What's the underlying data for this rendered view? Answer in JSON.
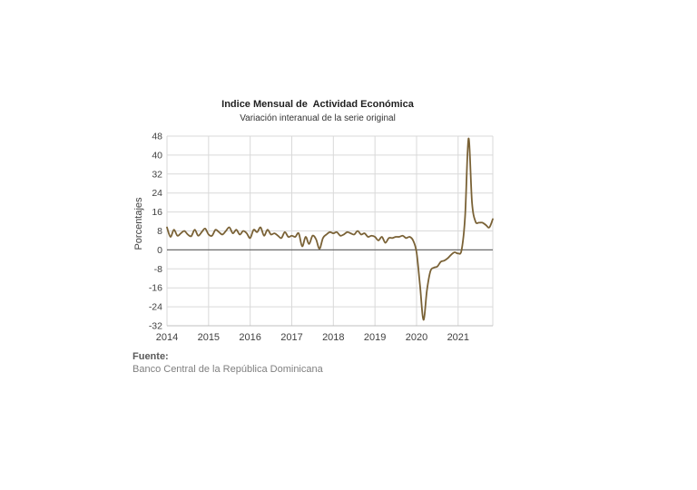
{
  "chart_data": {
    "type": "line",
    "title": "Indice Mensual de  Actividad Económica",
    "subtitle": "Variación interanual de la serie original",
    "xlabel": "",
    "ylabel": "Porcentajes",
    "x_tick_labels": [
      "2014",
      "2015",
      "2016",
      "2017",
      "2018",
      "2019",
      "2020",
      "2021"
    ],
    "y_ticks": [
      48,
      40,
      32,
      24,
      16,
      8,
      0,
      -8,
      -16,
      -24,
      -32
    ],
    "ylim": [
      -32,
      48
    ],
    "xlim": [
      "2014-01",
      "2021-11"
    ],
    "grid": true,
    "legend": "none",
    "line_color": "#7a6236",
    "series": [
      {
        "name": "",
        "x": [
          "2014-01",
          "2014-02",
          "2014-03",
          "2014-04",
          "2014-05",
          "2014-06",
          "2014-07",
          "2014-08",
          "2014-09",
          "2014-10",
          "2014-11",
          "2014-12",
          "2015-01",
          "2015-02",
          "2015-03",
          "2015-04",
          "2015-05",
          "2015-06",
          "2015-07",
          "2015-08",
          "2015-09",
          "2015-10",
          "2015-11",
          "2015-12",
          "2016-01",
          "2016-02",
          "2016-03",
          "2016-04",
          "2016-05",
          "2016-06",
          "2016-07",
          "2016-08",
          "2016-09",
          "2016-10",
          "2016-11",
          "2016-12",
          "2017-01",
          "2017-02",
          "2017-03",
          "2017-04",
          "2017-05",
          "2017-06",
          "2017-07",
          "2017-08",
          "2017-09",
          "2017-10",
          "2017-11",
          "2017-12",
          "2018-01",
          "2018-02",
          "2018-03",
          "2018-04",
          "2018-05",
          "2018-06",
          "2018-07",
          "2018-08",
          "2018-09",
          "2018-10",
          "2018-11",
          "2018-12",
          "2019-01",
          "2019-02",
          "2019-03",
          "2019-04",
          "2019-05",
          "2019-06",
          "2019-07",
          "2019-08",
          "2019-09",
          "2019-10",
          "2019-11",
          "2019-12",
          "2020-01",
          "2020-02",
          "2020-03",
          "2020-04",
          "2020-05",
          "2020-06",
          "2020-07",
          "2020-08",
          "2020-09",
          "2020-10",
          "2020-11",
          "2020-12",
          "2021-01",
          "2021-02",
          "2021-03",
          "2021-04",
          "2021-05",
          "2021-06",
          "2021-07",
          "2021-08",
          "2021-09",
          "2021-10",
          "2021-11"
        ],
        "values": [
          9.5,
          5.5,
          8.5,
          6.0,
          7.0,
          8.0,
          6.5,
          5.8,
          8.5,
          6.0,
          7.5,
          9.0,
          6.5,
          6.0,
          8.5,
          7.5,
          6.5,
          8.0,
          9.5,
          7.0,
          8.5,
          6.5,
          8.0,
          7.0,
          5.0,
          8.5,
          7.5,
          9.5,
          6.0,
          8.5,
          6.5,
          7.0,
          6.0,
          5.0,
          7.5,
          5.5,
          6.0,
          5.5,
          7.0,
          1.5,
          5.5,
          2.5,
          6.0,
          4.5,
          0.5,
          5.0,
          6.5,
          7.5,
          7.0,
          7.5,
          6.0,
          6.5,
          7.5,
          7.0,
          6.5,
          8.0,
          6.5,
          7.0,
          5.5,
          6.0,
          5.5,
          4.0,
          5.5,
          3.0,
          5.0,
          5.0,
          5.5,
          5.5,
          6.0,
          5.0,
          5.5,
          4.0,
          -1.0,
          -15.0,
          -29.5,
          -17.0,
          -9.0,
          -7.5,
          -7.0,
          -5.0,
          -4.5,
          -3.5,
          -2.0,
          -1.0,
          -1.5,
          0.0,
          14.0,
          47.0,
          20.0,
          12.0,
          11.5,
          11.5,
          10.5,
          9.5,
          13.0
        ]
      }
    ]
  },
  "source": {
    "label": "Fuente:",
    "text": "Banco Central de la República Dominicana"
  }
}
